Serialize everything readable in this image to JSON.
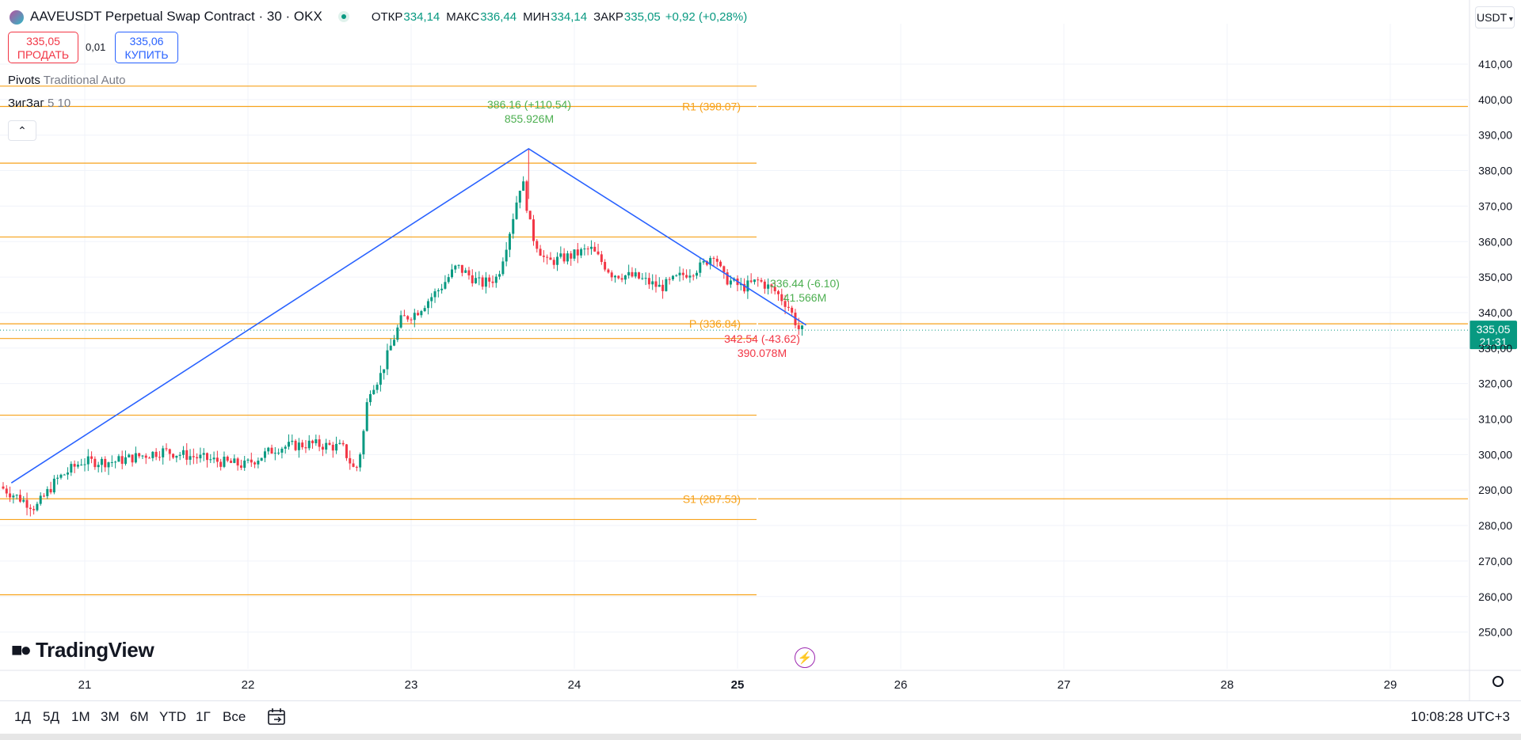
{
  "header": {
    "symbol": "AAVEUSDT Perpetual Swap Contract · 30 · OKX",
    "ohlc": [
      {
        "label": "ОТКР",
        "value": "334,14"
      },
      {
        "label": "МАКС",
        "value": "336,44"
      },
      {
        "label": "МИН",
        "value": "334,14"
      },
      {
        "label": "ЗАКР",
        "value": "335,05"
      }
    ],
    "change": "+0,92 (+0,28%)"
  },
  "trade": {
    "sell_price": "335,05",
    "sell_label": "ПРОДАТЬ",
    "spread": "0,01",
    "buy_price": "335,06",
    "buy_label": "КУПИТЬ"
  },
  "indicators": {
    "pivots_name": "Pivots",
    "pivots_params": "Traditional Auto",
    "zigzag_name": "ЗигЗаг",
    "zigzag_params": "5 10",
    "collapse_icon": "chevron-up-icon"
  },
  "currency": "USDT",
  "logo": "TradingView",
  "timeframes": [
    "1Д",
    "5Д",
    "1М",
    "3М",
    "6М",
    "YTD",
    "1Г",
    "Все"
  ],
  "clock": "10:08:28 UTC+3",
  "colors": {
    "up": "#089981",
    "down": "#f23645",
    "pivot": "#f7a21b",
    "zigzag": "#2962ff",
    "price_tag": "#089981"
  },
  "chart_data": {
    "type": "candlestick",
    "ylim": [
      245,
      415
    ],
    "y_ticks": [
      "250,00",
      "260,00",
      "270,00",
      "280,00",
      "290,00",
      "300,00",
      "310,00",
      "320,00",
      "330,00",
      "340,00",
      "350,00",
      "360,00",
      "370,00",
      "380,00",
      "390,00",
      "400,00",
      "410,00"
    ],
    "x_ticks": [
      {
        "label": "21",
        "day": 21,
        "bold": false
      },
      {
        "label": "22",
        "day": 22,
        "bold": false
      },
      {
        "label": "23",
        "day": 23,
        "bold": false
      },
      {
        "label": "24",
        "day": 24,
        "bold": false
      },
      {
        "label": "25",
        "day": 25,
        "bold": true
      },
      {
        "label": "26",
        "day": 26,
        "bold": false
      },
      {
        "label": "27",
        "day": 27,
        "bold": false
      },
      {
        "label": "28",
        "day": 28,
        "bold": false
      },
      {
        "label": "29",
        "day": 29,
        "bold": false
      }
    ],
    "current_price": {
      "price": 335.05,
      "label": "335,05",
      "countdown": "21:31"
    },
    "pivot_levels": [
      {
        "price": 403.8,
        "label": ""
      },
      {
        "price": 398.07,
        "label": "R1 (398.07)"
      },
      {
        "price": 382.1,
        "label": ""
      },
      {
        "price": 361.3,
        "label": ""
      },
      {
        "price": 336.84,
        "label": "P (336.84)"
      },
      {
        "price": 332.7,
        "label": ""
      },
      {
        "price": 311.1,
        "label": ""
      },
      {
        "price": 287.53,
        "label": "S1 (287.53)"
      },
      {
        "price": 281.7,
        "label": ""
      },
      {
        "price": 260.5,
        "label": ""
      }
    ],
    "zigzag": [
      {
        "day": 20.55,
        "price": 292.0
      },
      {
        "day": 23.72,
        "price": 386.16
      },
      {
        "day": 25.42,
        "price": 336.5
      }
    ],
    "zigzag_labels": [
      {
        "price_text": "386.16 (+110.54)",
        "volume_text": "855.926M",
        "dir": "up"
      },
      {
        "price_text": "336.44 (-6.10)",
        "volume_text": "41.566M",
        "dir": "up"
      },
      {
        "price_text": "342.54 (-43.62)",
        "volume_text": "390.078M",
        "dir": "down"
      }
    ],
    "price_path": [
      {
        "day": 20.5,
        "price": 291
      },
      {
        "day": 20.72,
        "price": 285
      },
      {
        "day": 20.85,
        "price": 293
      },
      {
        "day": 21.0,
        "price": 298
      },
      {
        "day": 21.2,
        "price": 298
      },
      {
        "day": 21.5,
        "price": 301
      },
      {
        "day": 21.85,
        "price": 298
      },
      {
        "day": 22.0,
        "price": 297
      },
      {
        "day": 22.2,
        "price": 302
      },
      {
        "day": 22.4,
        "price": 303
      },
      {
        "day": 22.6,
        "price": 302
      },
      {
        "day": 22.68,
        "price": 295
      },
      {
        "day": 22.72,
        "price": 303
      },
      {
        "day": 22.76,
        "price": 318
      },
      {
        "day": 22.83,
        "price": 322
      },
      {
        "day": 22.9,
        "price": 331
      },
      {
        "day": 22.96,
        "price": 338
      },
      {
        "day": 23.05,
        "price": 340
      },
      {
        "day": 23.2,
        "price": 347
      },
      {
        "day": 23.3,
        "price": 353
      },
      {
        "day": 23.45,
        "price": 348
      },
      {
        "day": 23.55,
        "price": 350
      },
      {
        "day": 23.62,
        "price": 362
      },
      {
        "day": 23.7,
        "price": 378
      },
      {
        "day": 23.76,
        "price": 362
      },
      {
        "day": 23.85,
        "price": 354
      },
      {
        "day": 24.0,
        "price": 356
      },
      {
        "day": 24.12,
        "price": 358
      },
      {
        "day": 24.25,
        "price": 351
      },
      {
        "day": 24.4,
        "price": 350
      },
      {
        "day": 24.55,
        "price": 347
      },
      {
        "day": 24.7,
        "price": 351
      },
      {
        "day": 24.8,
        "price": 353
      },
      {
        "day": 24.88,
        "price": 357
      },
      {
        "day": 24.93,
        "price": 350
      },
      {
        "day": 25.05,
        "price": 347
      },
      {
        "day": 25.15,
        "price": 349
      },
      {
        "day": 25.25,
        "price": 346
      },
      {
        "day": 25.33,
        "price": 342
      },
      {
        "day": 25.4,
        "price": 335
      }
    ]
  }
}
